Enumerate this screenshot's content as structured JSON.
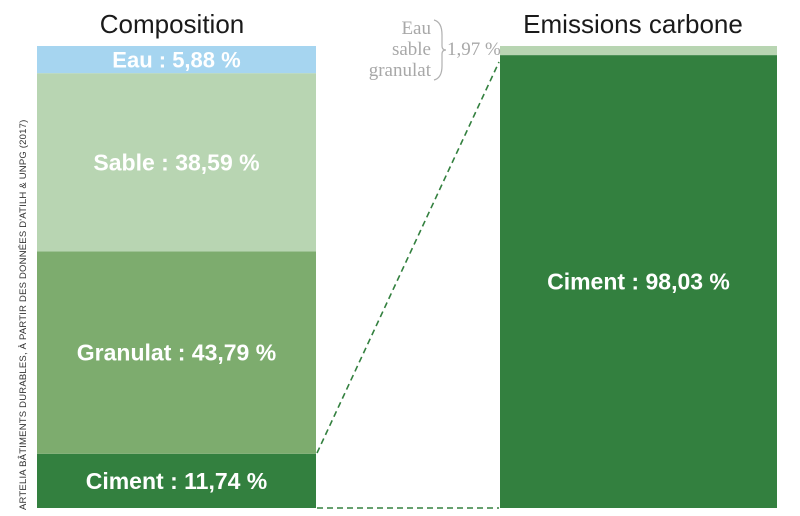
{
  "chart_data": [
    {
      "type": "bar",
      "stacked": true,
      "title": "Composition",
      "unit": "%",
      "segments": [
        {
          "name": "Ciment",
          "label": "Ciment : 11,74 %",
          "value": 11.74,
          "color": "#33803f"
        },
        {
          "name": "Granulat",
          "label": "Granulat : 43,79 %",
          "value": 43.79,
          "color": "#7dac6e"
        },
        {
          "name": "Sable",
          "label": "Sable : 38,59 %",
          "value": 38.59,
          "color": "#b8d5b2"
        },
        {
          "name": "Eau",
          "label": "Eau : 5,88 %",
          "value": 5.88,
          "color": "#a6d5f0"
        }
      ]
    },
    {
      "type": "bar",
      "stacked": true,
      "title": "Emissions carbone",
      "unit": "%",
      "segments": [
        {
          "name": "Ciment",
          "label": "Ciment : 98,03 %",
          "value": 98.03,
          "color": "#33803f"
        },
        {
          "name": "Eau sable granulat",
          "label": "",
          "value": 1.97,
          "color": "#b8d5b2"
        }
      ],
      "annotation": {
        "lines": [
          "Eau",
          "sable",
          "granulat"
        ],
        "value_label": "1,97 %"
      }
    }
  ],
  "source": "ARTELIA BÂTIMENTS DURABLES, À PARTIR DES DONNÉES D'ATILH & UNPG (2017)",
  "colors": {
    "connector": "#33803f",
    "annotation": "#a8a8a8"
  }
}
